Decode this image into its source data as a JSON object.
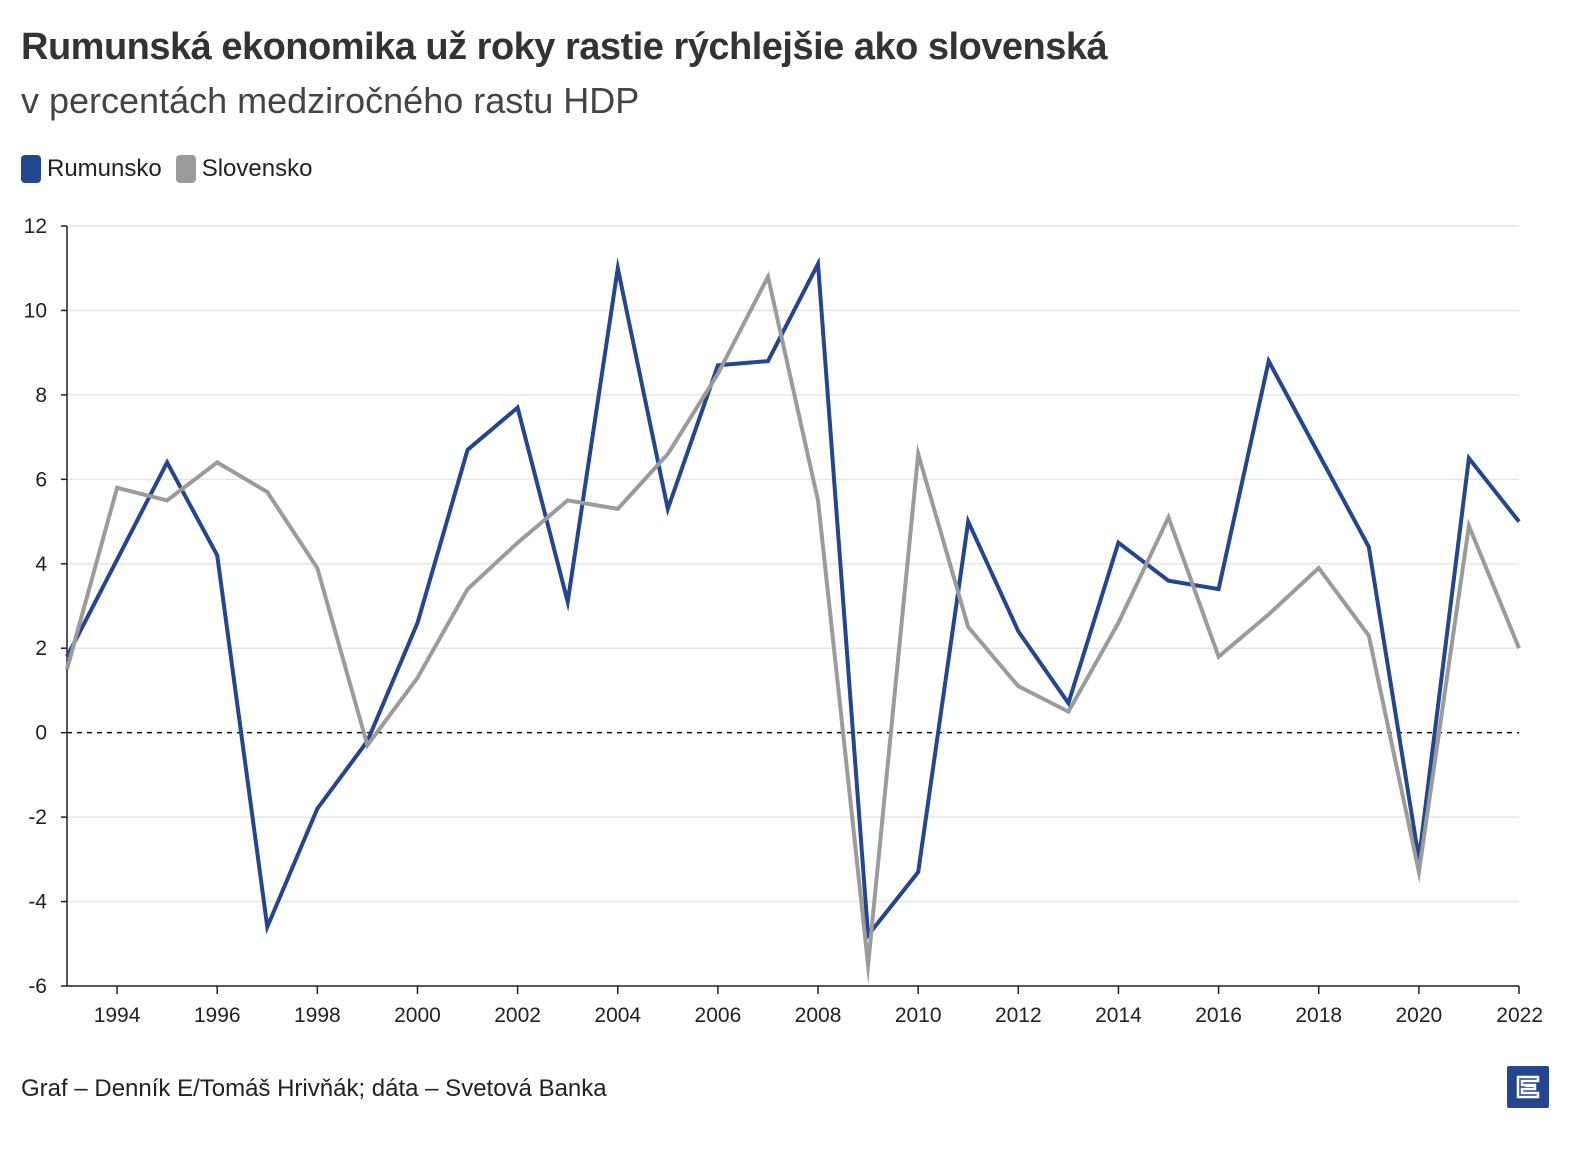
{
  "chart_data": {
    "type": "line",
    "title": "Rumunská ekonomika už roky rastie rýchlejšie ako slovenská",
    "subtitle": "v percentách medziročného rastu HDP",
    "xlabel": "",
    "ylabel": "",
    "x": [
      1993,
      1994,
      1995,
      1996,
      1997,
      1998,
      1999,
      2000,
      2001,
      2002,
      2003,
      2004,
      2005,
      2006,
      2007,
      2008,
      2009,
      2010,
      2011,
      2012,
      2013,
      2014,
      2015,
      2016,
      2017,
      2018,
      2019,
      2020,
      2021,
      2022
    ],
    "x_ticks": [
      "1994",
      "1996",
      "1998",
      "2000",
      "2002",
      "2004",
      "2006",
      "2008",
      "2010",
      "2012",
      "2014",
      "2016",
      "2018",
      "2020",
      "2022"
    ],
    "y_ticks": [
      "12",
      "10",
      "8",
      "6",
      "4",
      "2",
      "0",
      "-2",
      "-4",
      "-6"
    ],
    "xlim": [
      1993,
      2022
    ],
    "ylim": [
      -6,
      12
    ],
    "grid": true,
    "zero_line": "dashed",
    "legend_position": "top-left",
    "series": [
      {
        "name": "Rumunsko",
        "color": "#23468f",
        "values": [
          1.8,
          4.1,
          6.4,
          4.2,
          -4.6,
          -1.8,
          -0.2,
          2.6,
          6.7,
          7.7,
          3.1,
          11.0,
          5.3,
          8.7,
          8.8,
          11.1,
          -4.8,
          -3.3,
          5.0,
          2.4,
          0.7,
          4.5,
          3.6,
          3.4,
          8.8,
          6.6,
          4.4,
          -3.0,
          6.5,
          5.0
        ]
      },
      {
        "name": "Slovensko",
        "color": "#9b9b9b",
        "values": [
          1.5,
          5.8,
          5.5,
          6.4,
          5.7,
          3.9,
          -0.3,
          1.3,
          3.4,
          4.5,
          5.5,
          5.3,
          6.6,
          8.5,
          10.8,
          5.5,
          -5.5,
          6.6,
          2.5,
          1.1,
          0.5,
          2.6,
          5.1,
          1.8,
          2.8,
          3.9,
          2.3,
          -3.3,
          4.9,
          2.0
        ]
      }
    ]
  },
  "source": "Graf – Denník E/Tomáš Hrivňák; dáta – Svetová Banka",
  "logo_letter": "E",
  "colors": {
    "accent": "#23468f",
    "secondary": "#9b9b9b"
  }
}
